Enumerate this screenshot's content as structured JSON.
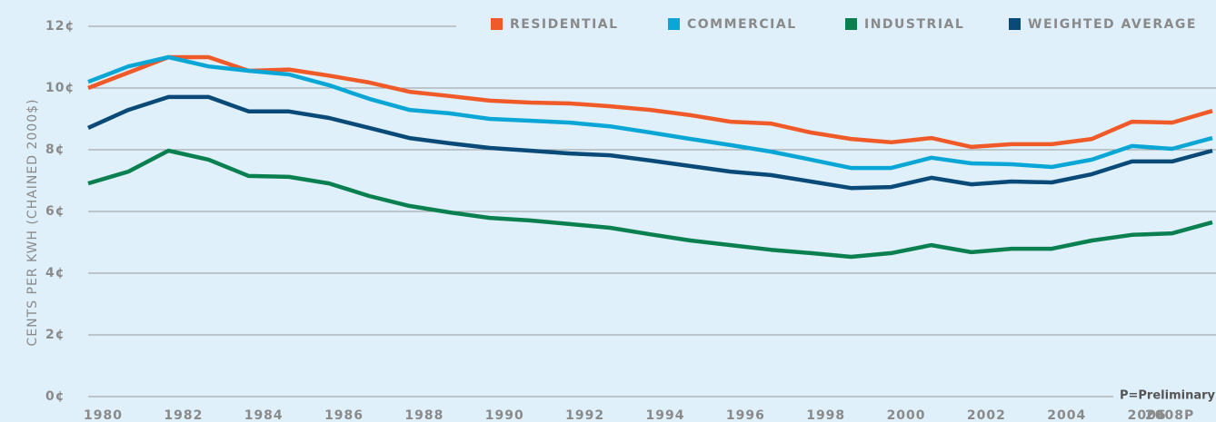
{
  "chart_data": {
    "type": "line",
    "y_label": "CENTS PER KWH (CHAINED 2000$)",
    "annotation": "P=Preliminary",
    "x": [
      1980,
      1981,
      1982,
      1983,
      1984,
      1985,
      1986,
      1987,
      1988,
      1989,
      1990,
      1991,
      1992,
      1993,
      1994,
      1995,
      1996,
      1997,
      1998,
      1999,
      2000,
      2001,
      2002,
      2003,
      2004,
      2005,
      2006,
      2007,
      2008
    ],
    "xlim": [
      1980,
      2008
    ],
    "xticks": [
      1980,
      1982,
      1984,
      1986,
      1988,
      1990,
      1992,
      1994,
      1996,
      1998,
      2000,
      2002,
      2004,
      2006,
      {
        "value": 2008,
        "label": "2008P"
      }
    ],
    "ylim": [
      0,
      12
    ],
    "yticks": [
      {
        "value": 0,
        "label": "0¢"
      },
      {
        "value": 2,
        "label": "2¢"
      },
      {
        "value": 4,
        "label": "4¢"
      },
      {
        "value": 6,
        "label": "6¢"
      },
      {
        "value": 8,
        "label": "8¢"
      },
      {
        "value": 10,
        "label": "10¢"
      },
      {
        "value": 12,
        "label": "12¢"
      }
    ],
    "grid": true,
    "legend": "top-right",
    "series": [
      {
        "name": "RESIDENTIAL",
        "color": "#f05a28",
        "values": [
          10.0,
          10.5,
          11.0,
          11.0,
          10.56,
          10.6,
          10.4,
          10.18,
          9.88,
          9.74,
          9.59,
          9.53,
          9.5,
          9.41,
          9.29,
          9.12,
          8.91,
          8.85,
          8.56,
          8.35,
          8.24,
          8.38,
          8.09,
          8.18,
          8.18,
          8.35,
          8.91,
          8.88,
          9.26
        ]
      },
      {
        "name": "COMMERCIAL",
        "color": "#0aa6d6",
        "values": [
          10.2,
          10.7,
          11.0,
          10.7,
          10.56,
          10.44,
          10.09,
          9.65,
          9.29,
          9.18,
          9.0,
          8.94,
          8.88,
          8.76,
          8.56,
          8.35,
          8.15,
          7.94,
          7.68,
          7.41,
          7.41,
          7.74,
          7.56,
          7.53,
          7.44,
          7.68,
          8.12,
          8.03,
          8.38
        ]
      },
      {
        "name": "INDUSTRIAL",
        "color": "#0a8050",
        "values": [
          6.91,
          7.29,
          7.97,
          7.68,
          7.15,
          7.12,
          6.91,
          6.5,
          6.18,
          5.97,
          5.79,
          5.71,
          5.59,
          5.47,
          5.26,
          5.06,
          4.91,
          4.76,
          4.65,
          4.53,
          4.65,
          4.91,
          4.68,
          4.79,
          4.79,
          5.06,
          5.24,
          5.29,
          5.65
        ]
      },
      {
        "name": "WEIGHTED AVERAGE",
        "color": "#0a4a78",
        "values": [
          8.71,
          9.29,
          9.71,
          9.71,
          9.24,
          9.24,
          9.03,
          8.71,
          8.38,
          8.21,
          8.06,
          7.97,
          7.88,
          7.82,
          7.65,
          7.47,
          7.29,
          7.18,
          6.97,
          6.76,
          6.79,
          7.09,
          6.88,
          6.97,
          6.94,
          7.21,
          7.62,
          7.62,
          7.97
        ]
      }
    ]
  }
}
